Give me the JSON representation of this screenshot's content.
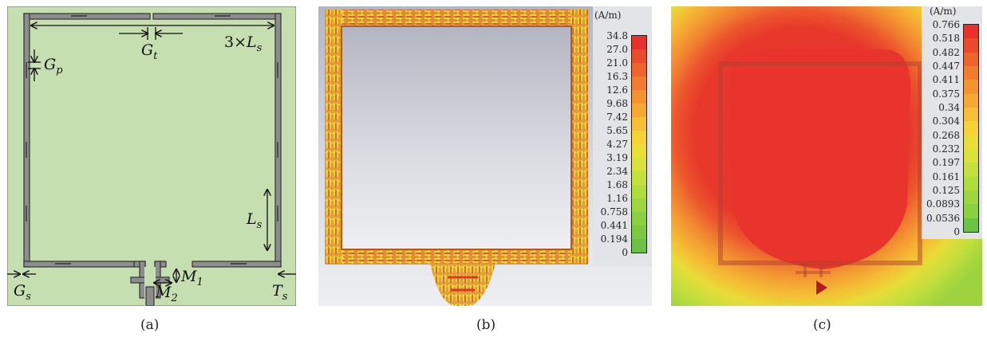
{
  "panels": [
    {
      "id": "a",
      "caption": "(a)",
      "labels": {
        "three_ls_prefix": "3×",
        "three_ls_main": "L",
        "three_ls_sub": "s",
        "gt_main": "G",
        "gt_sub": "t",
        "gp_main": "G",
        "gp_sub": "p",
        "ls_main": "L",
        "ls_sub": "s",
        "gs_main": "G",
        "gs_sub": "s",
        "ts_main": "T",
        "ts_sub": "s",
        "m1_main": "M",
        "m1_sub": "1",
        "m2_main": "M",
        "m2_sub": "2"
      },
      "colors": {
        "substrate": "#c6dfb0",
        "metal": "#8a8a8a",
        "metal_edge": "#3a3a3a"
      }
    },
    {
      "id": "b",
      "caption": "(b)",
      "colorbar": {
        "unit": "(A/m)",
        "ticks": [
          "34.8",
          "27.0",
          "21.0",
          "16.3",
          "12.6",
          "9.68",
          "7.42",
          "5.65",
          "4.27",
          "3.19",
          "2.34",
          "1.68",
          "1.16",
          "0.758",
          "0.441",
          "0.194",
          "0"
        ],
        "colors": [
          "#e8312b",
          "#ec4a2c",
          "#ef642d",
          "#f27c2f",
          "#f39431",
          "#f5a933",
          "#f7bf35",
          "#f5d237",
          "#e9dd38",
          "#d8e23a",
          "#c4e03c",
          "#b0dc3d",
          "#9dd63f",
          "#8bd040",
          "#7ac941",
          "#6cc242"
        ]
      },
      "colors": {
        "background": "#c9cbd3"
      }
    },
    {
      "id": "c",
      "caption": "(c)",
      "colorbar": {
        "unit": "(A/m)",
        "ticks": [
          "0.766",
          "0.518",
          "0.482",
          "0.447",
          "0.411",
          "0.375",
          "0.34",
          "0.304",
          "0.268",
          "0.232",
          "0.197",
          "0.161",
          "0.125",
          "0.0893",
          "0.0536",
          "0"
        ],
        "colors": [
          "#e8312b",
          "#ec4a2c",
          "#ef642d",
          "#f27c2f",
          "#f39431",
          "#f5a933",
          "#f7bf35",
          "#f5d237",
          "#e9dd38",
          "#d8e23a",
          "#c4e03c",
          "#b0dc3d",
          "#9dd63f",
          "#8bd040",
          "#6cc242"
        ]
      }
    }
  ]
}
